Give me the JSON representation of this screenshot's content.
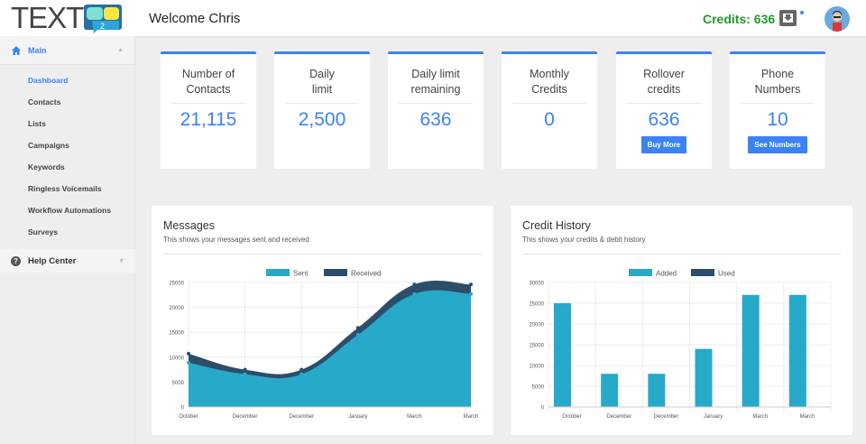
{
  "header": {
    "logo_text": "TEXT",
    "logo_mark": "2",
    "welcome": "Welcome Chris",
    "credits": "Credits: 636",
    "inbox_icon": "inbox-download-icon",
    "avatar": "user-avatar"
  },
  "sidebar": {
    "main_label": "Main",
    "items": [
      {
        "label": "Dashboard",
        "active": true
      },
      {
        "label": "Contacts"
      },
      {
        "label": "Lists"
      },
      {
        "label": "Campaigns"
      },
      {
        "label": "Keywords"
      },
      {
        "label": "Ringless Voicemails"
      },
      {
        "label": "Workflow Automations"
      },
      {
        "label": "Surveys"
      }
    ],
    "help_label": "Help Center"
  },
  "cards": [
    {
      "title": "Number of Contacts",
      "value": "21,115"
    },
    {
      "title": "Daily limit",
      "value": "2,500"
    },
    {
      "title": "Daily limit remaining",
      "value": "636"
    },
    {
      "title": "Monthly Credits",
      "value": "0"
    },
    {
      "title": "Rollover credits",
      "value": "636",
      "button": "Buy More"
    },
    {
      "title": "Phone Numbers",
      "value": "10",
      "button": "See Numbers"
    }
  ],
  "colors": {
    "accent": "#3b82f6",
    "sent": "#27a9c9",
    "received": "#2c4e6b",
    "credits": "#1e9a2a"
  },
  "panels": [
    {
      "title": "Messages",
      "subtitle": "This shows your messages sent and received"
    },
    {
      "title": "Credit History",
      "subtitle": "This shows your credits & debit history"
    }
  ],
  "chart_data": [
    {
      "type": "area",
      "categories": [
        "October",
        "December",
        "December",
        "January",
        "March",
        "March"
      ],
      "ylim": [
        0,
        25000
      ],
      "yticks": [
        0,
        5000,
        10000,
        15000,
        20000,
        25000
      ],
      "legend": "top",
      "grid": true,
      "series": [
        {
          "name": "Sent",
          "values": [
            8900,
            6600,
            6600,
            14500,
            22700,
            22700
          ]
        },
        {
          "name": "Received",
          "values": [
            10700,
            7500,
            7500,
            15900,
            24600,
            24600
          ]
        }
      ]
    },
    {
      "type": "bar",
      "categories": [
        "October",
        "December",
        "December",
        "January",
        "March",
        "March"
      ],
      "ylim": [
        0,
        30000
      ],
      "yticks": [
        0,
        5000,
        10000,
        15000,
        20000,
        25000,
        30000
      ],
      "legend": "top",
      "grid": true,
      "series": [
        {
          "name": "Added",
          "values": [
            25000,
            8000,
            8000,
            14000,
            27000,
            27000
          ]
        },
        {
          "name": "Used",
          "values": [
            0,
            0,
            0,
            0,
            0,
            0
          ]
        }
      ]
    }
  ]
}
